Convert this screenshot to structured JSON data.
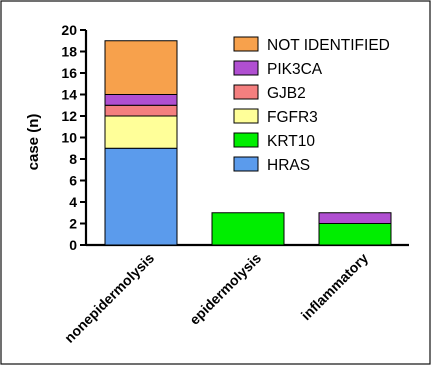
{
  "chart_data": {
    "type": "bar",
    "stacked": true,
    "ylabel": "case (n)",
    "xlabel": "",
    "ylim": [
      0,
      20
    ],
    "y_ticks": [
      0,
      2,
      4,
      6,
      8,
      10,
      12,
      14,
      16,
      18,
      20
    ],
    "grid": false,
    "legend_position": "top-right",
    "categories": [
      "nonepidermolysis",
      "epidermolysis",
      "inflammatory"
    ],
    "series": [
      {
        "name": "HRAS",
        "color": "#5b9bec",
        "values": [
          9,
          0,
          0
        ]
      },
      {
        "name": "KRT10",
        "color": "#00ee00",
        "values": [
          0,
          3,
          2
        ]
      },
      {
        "name": "FGFR3",
        "color": "#ffff99",
        "values": [
          3,
          0,
          0
        ]
      },
      {
        "name": "GJB2",
        "color": "#f47f7f",
        "values": [
          1,
          0,
          0
        ]
      },
      {
        "name": "PIK3CA",
        "color": "#b04fd1",
        "values": [
          1,
          0,
          1
        ]
      },
      {
        "name": "NOT IDENTIFIED",
        "color": "#f7a14c",
        "values": [
          5,
          0,
          0
        ]
      }
    ]
  }
}
